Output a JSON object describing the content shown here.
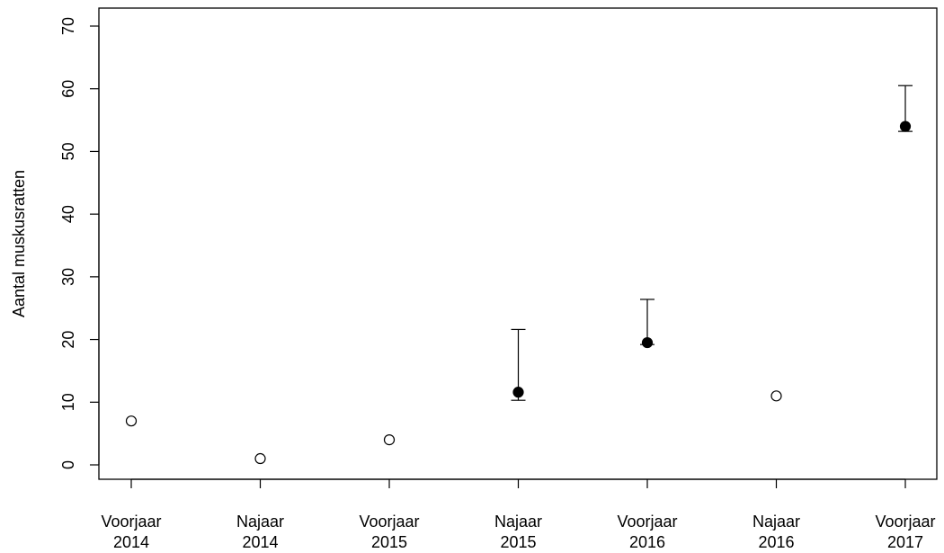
{
  "chart_data": {
    "type": "scatter",
    "title": "",
    "xlabel": "",
    "ylabel": "Aantal muskusratten",
    "categories": [
      [
        "Voorjaar",
        "2014"
      ],
      [
        "Najaar",
        "2014"
      ],
      [
        "Voorjaar",
        "2015"
      ],
      [
        "Najaar",
        "2015"
      ],
      [
        "Voorjaar",
        "2016"
      ],
      [
        "Najaar",
        "2016"
      ],
      [
        "Voorjaar",
        "2017"
      ]
    ],
    "yticks": [
      0,
      10,
      20,
      30,
      40,
      50,
      60,
      70
    ],
    "ylim": [
      -3,
      72
    ],
    "grid": false,
    "points": [
      {
        "value": 7,
        "filled": false
      },
      {
        "value": 1,
        "filled": false
      },
      {
        "value": 4,
        "filled": false
      },
      {
        "value": 11.6,
        "filled": true,
        "lower": 10.3,
        "upper": 21.6
      },
      {
        "value": 19.5,
        "filled": true,
        "lower": 19.2,
        "upper": 26.4
      },
      {
        "value": 11,
        "filled": false
      },
      {
        "value": 54,
        "filled": true,
        "lower": 53.2,
        "upper": 60.5
      }
    ],
    "colors": {
      "axis": "#000000",
      "point_fill": "#000000",
      "open_point_fill": "#ffffff"
    }
  }
}
